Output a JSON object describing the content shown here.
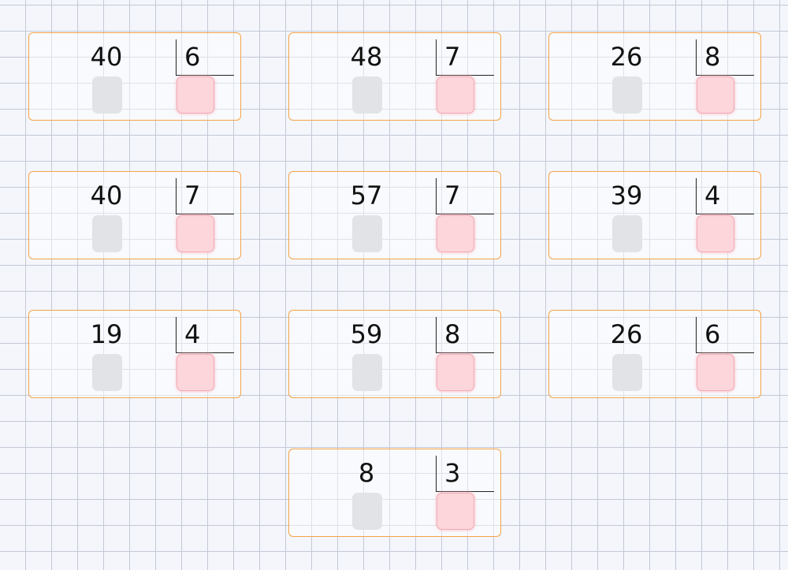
{
  "problems": [
    {
      "dividend": "40",
      "divisor": "6"
    },
    {
      "dividend": "48",
      "divisor": "7"
    },
    {
      "dividend": "26",
      "divisor": "8"
    },
    {
      "dividend": "40",
      "divisor": "7"
    },
    {
      "dividend": "57",
      "divisor": "7"
    },
    {
      "dividend": "39",
      "divisor": "4"
    },
    {
      "dividend": "19",
      "divisor": "4"
    },
    {
      "dividend": "59",
      "divisor": "8"
    },
    {
      "dividend": "26",
      "divisor": "6"
    },
    {
      "dividend": "8",
      "divisor": "3"
    }
  ],
  "colors": {
    "card_border": "#f5a347",
    "answer_box": "#fcd6db",
    "quotient_box": "#e2e3e6"
  }
}
